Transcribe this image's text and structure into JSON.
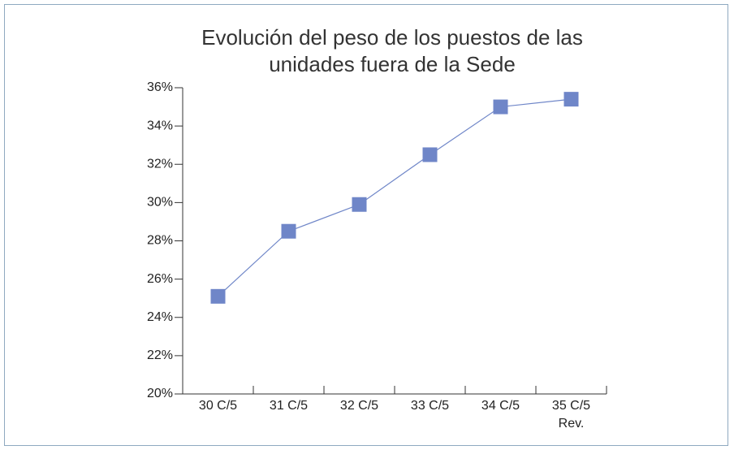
{
  "chart_data": {
    "type": "line",
    "title": "Evolución del peso de los puestos de las unidades fuera de la Sede",
    "categories": [
      "30 C/5",
      "31 C/5",
      "32 C/5",
      "33 C/5",
      "34 C/5",
      "35 C/5 Rev."
    ],
    "series": [
      {
        "name": null,
        "color": "#6f86c8",
        "values": [
          25.1,
          28.5,
          29.9,
          32.5,
          35.0,
          35.4
        ]
      }
    ],
    "ylim": [
      20,
      36
    ],
    "yticks": [
      {
        "value": 20,
        "label": "20%"
      },
      {
        "value": 22,
        "label": "22%"
      },
      {
        "value": 24,
        "label": "24%"
      },
      {
        "value": 26,
        "label": "26%"
      },
      {
        "value": 28,
        "label": "28%"
      },
      {
        "value": 30,
        "label": "30%"
      },
      {
        "value": 32,
        "label": "32%"
      },
      {
        "value": 34,
        "label": "34%"
      },
      {
        "value": 36,
        "label": "36%"
      }
    ],
    "grid": false
  }
}
